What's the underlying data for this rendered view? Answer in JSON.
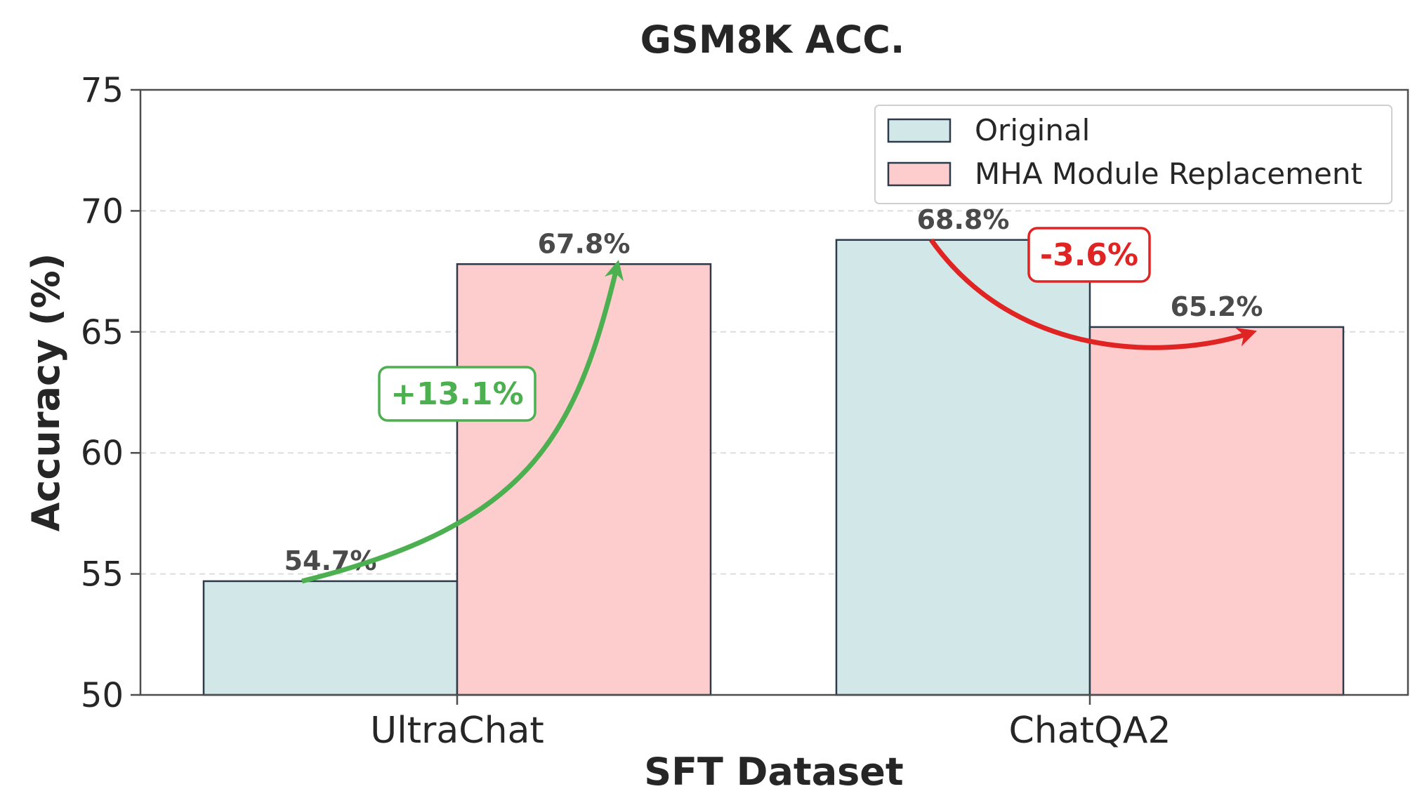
{
  "chart_data": {
    "type": "bar",
    "title": "GSM8K ACC.",
    "xlabel": "SFT Dataset",
    "ylabel": "Accuracy (%)",
    "ylim": [
      50,
      75
    ],
    "yticks": [
      "50",
      "55",
      "60",
      "65",
      "70",
      "75"
    ],
    "categories": [
      "UltraChat",
      "ChatQA2"
    ],
    "series": [
      {
        "name": "Original",
        "values": [
          54.7,
          68.8
        ],
        "labels": [
          "54.7%",
          "68.8%"
        ],
        "color": "#d1e7e8"
      },
      {
        "name": "MHA Module Replacement",
        "values": [
          67.8,
          65.2
        ],
        "labels": [
          "67.8%",
          "65.2%"
        ],
        "color": "#fdcdcd"
      }
    ],
    "annotations": [
      {
        "category": "UltraChat",
        "text": "+13.1%",
        "color": "#4caf50"
      },
      {
        "category": "ChatQA2",
        "text": "-3.6%",
        "color": "#e02424"
      }
    ],
    "grid": "y-dashed",
    "legend_position": "top-right"
  }
}
